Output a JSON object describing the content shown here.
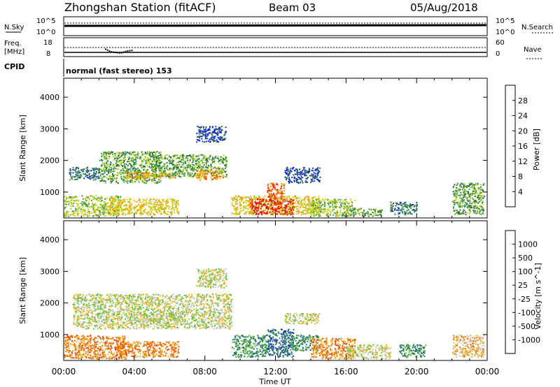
{
  "header": {
    "title": "Zhongshan Station (fitACF)",
    "beam": "Beam 03",
    "date": "05/Aug/2018"
  },
  "top_panels": {
    "nsky_label": "N.Sky",
    "nsky_ticks": [
      "10^5",
      "10^0"
    ],
    "nsearch_label": "N.Search",
    "nsearch_ticks": [
      "10^5",
      "10^0"
    ],
    "freq_label_1": "Freq.",
    "freq_label_2": "[MHz]",
    "freq_ticks": [
      "18",
      "8"
    ],
    "nave_label": "Nave",
    "nave_ticks": [
      "60",
      "0"
    ],
    "cpid_label": "CPID",
    "cpid_text": "normal (fast stereo) 153"
  },
  "chart_data": [
    {
      "type": "heatmap",
      "name": "power",
      "ylabel": "Slant Range [km]",
      "ylim": [
        180,
        4600
      ],
      "yticks": [
        "4000",
        "3000",
        "2000",
        "1000"
      ],
      "xticks": [
        "00:00",
        "04:00",
        "08:00",
        "12:00",
        "16:00",
        "20:00",
        "00:00"
      ],
      "colorbar_label": "Power [dB]",
      "colorbar_ticks": [
        "28",
        "24",
        "20",
        "16",
        "12",
        "8",
        "4"
      ],
      "colorbar_colors": [
        "#0a22f0",
        "#1a3fa8",
        "#2e6b3a",
        "#3f9a55",
        "#a8d11f",
        "#f2c80f",
        "#f29a0a",
        "#ee5e0a",
        "#e52a0a",
        "#e60000"
      ],
      "blobs": [
        {
          "t0": 0.0,
          "t1": 3.2,
          "r0": 250,
          "r1": 900,
          "level": 4
        },
        {
          "t0": 0.3,
          "t1": 2.0,
          "r0": 1400,
          "r1": 1800,
          "level": 2
        },
        {
          "t0": 2.0,
          "t1": 5.5,
          "r0": 1300,
          "r1": 2300,
          "level": 3
        },
        {
          "t0": 3.5,
          "t1": 6.5,
          "r0": 1450,
          "r1": 1650,
          "level": 6
        },
        {
          "t0": 5.0,
          "t1": 9.2,
          "r0": 1500,
          "r1": 2200,
          "level": 3
        },
        {
          "t0": 7.5,
          "t1": 9.0,
          "r0": 1400,
          "r1": 1750,
          "level": 6
        },
        {
          "t0": 7.5,
          "t1": 9.2,
          "r0": 2600,
          "r1": 3100,
          "level": 1
        },
        {
          "t0": 2.5,
          "t1": 6.5,
          "r0": 300,
          "r1": 800,
          "level": 5
        },
        {
          "t0": 9.5,
          "t1": 14.5,
          "r0": 300,
          "r1": 900,
          "level": 5
        },
        {
          "t0": 10.5,
          "t1": 13.0,
          "r0": 300,
          "r1": 800,
          "level": 8
        },
        {
          "t0": 11.5,
          "t1": 12.5,
          "r0": 800,
          "r1": 1300,
          "level": 7
        },
        {
          "t0": 12.5,
          "t1": 14.5,
          "r0": 1300,
          "r1": 1800,
          "level": 1
        },
        {
          "t0": 14.0,
          "t1": 16.5,
          "r0": 250,
          "r1": 800,
          "level": 4
        },
        {
          "t0": 16.0,
          "t1": 18.0,
          "r0": 250,
          "r1": 500,
          "level": 3
        },
        {
          "t0": 18.5,
          "t1": 20.0,
          "r0": 300,
          "r1": 700,
          "level": 2
        },
        {
          "t0": 22.0,
          "t1": 23.8,
          "r0": 300,
          "r1": 1300,
          "level": 3
        }
      ]
    },
    {
      "type": "heatmap",
      "name": "velocity",
      "ylabel": "Slant Range [km]",
      "ylim": [
        180,
        4600
      ],
      "yticks": [
        "4000",
        "3000",
        "2000",
        "1000"
      ],
      "xticks": [
        "00:00",
        "04:00",
        "08:00",
        "12:00",
        "16:00",
        "20:00",
        "00:00"
      ],
      "xlabel": "Time UT",
      "colorbar_label": "Velocity [m s^-1]",
      "colorbar_ticks": [
        "1000",
        "500",
        "100",
        "25",
        "-25",
        "-100",
        "-500",
        "-1000"
      ],
      "colorbar_colors": [
        "#1a3fa8",
        "#2e6b8a",
        "#2f8a4f",
        "#63c23a",
        "#c8c8c0",
        "#f2b820",
        "#f07a10",
        "#e84a0a",
        "#e60000"
      ],
      "blobs": [
        {
          "t0": 0.0,
          "t1": 3.5,
          "r0": 250,
          "r1": 1000,
          "level": 6
        },
        {
          "t0": 0.5,
          "t1": 9.5,
          "r0": 1200,
          "r1": 2300,
          "level": 4
        },
        {
          "t0": 3.5,
          "t1": 6.5,
          "r0": 1450,
          "r1": 1700,
          "level": 4
        },
        {
          "t0": 7.5,
          "t1": 9.2,
          "r0": 2500,
          "r1": 3100,
          "level": 4
        },
        {
          "t0": 3.0,
          "t1": 6.5,
          "r0": 300,
          "r1": 800,
          "level": 6
        },
        {
          "t0": 9.5,
          "t1": 11.5,
          "r0": 300,
          "r1": 1000,
          "level": 2
        },
        {
          "t0": 11.5,
          "t1": 13.0,
          "r0": 300,
          "r1": 1200,
          "level": 1
        },
        {
          "t0": 12.8,
          "t1": 14.5,
          "r0": 500,
          "r1": 1000,
          "level": 2
        },
        {
          "t0": 12.5,
          "t1": 14.5,
          "r0": 1350,
          "r1": 1700,
          "level": 4
        },
        {
          "t0": 14.0,
          "t1": 16.5,
          "r0": 250,
          "r1": 900,
          "level": 6
        },
        {
          "t0": 16.0,
          "t1": 18.5,
          "r0": 250,
          "r1": 700,
          "level": 4
        },
        {
          "t0": 19.0,
          "t1": 20.5,
          "r0": 300,
          "r1": 700,
          "level": 2
        },
        {
          "t0": 22.0,
          "t1": 23.8,
          "r0": 300,
          "r1": 1000,
          "level": 5
        }
      ]
    }
  ]
}
